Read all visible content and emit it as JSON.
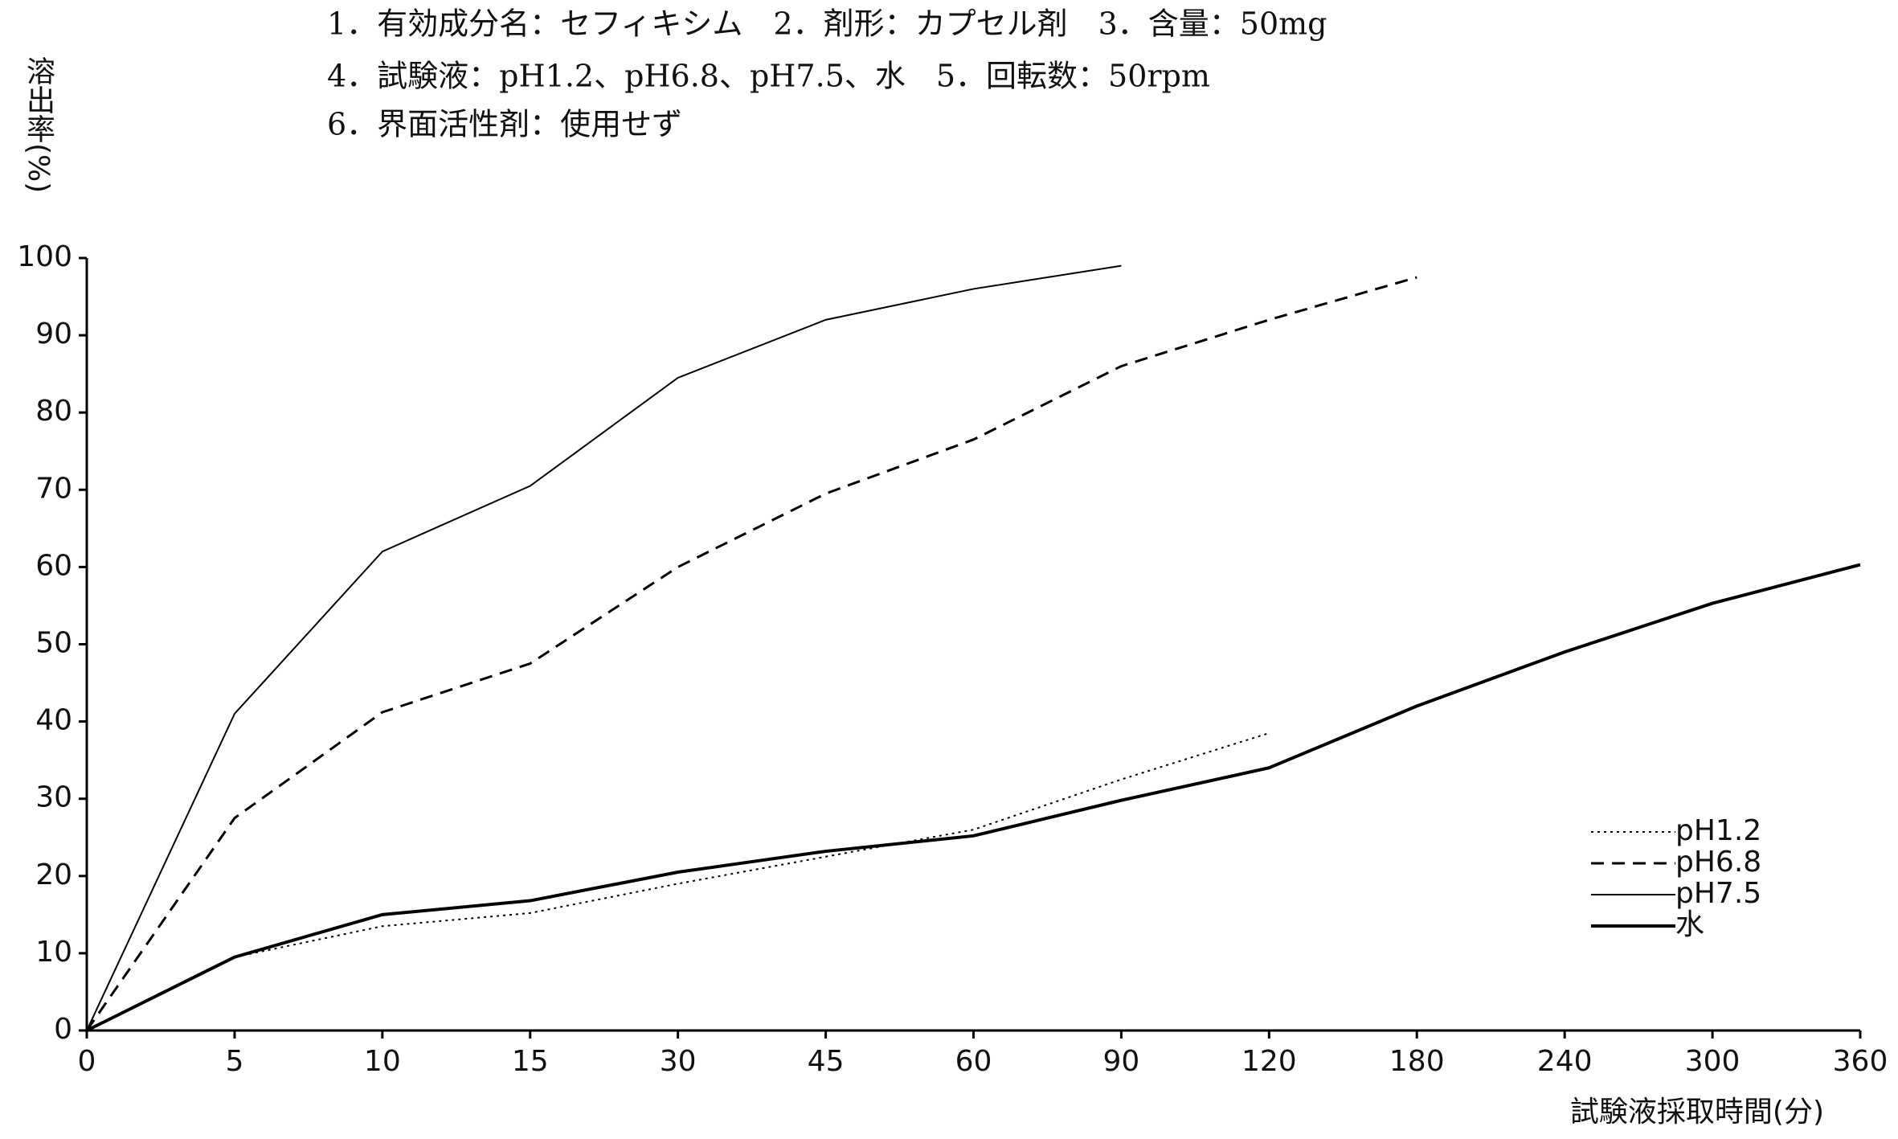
{
  "chart_data": {
    "type": "line",
    "header": [
      "1．有効成分名：セフィキシム　2．剤形：カプセル剤　3．含量：50mg",
      "4．試験液：pH1.2、pH6.8、pH7.5、水　5．回転数：50rpm",
      "6．界面活性剤：使用せず"
    ],
    "y_label": "溶出率(%)",
    "x_label": "試験液採取時間(分)",
    "categories": [
      "0",
      "5",
      "10",
      "15",
      "30",
      "45",
      "60",
      "90",
      "120",
      "180",
      "240",
      "300",
      "360"
    ],
    "series": [
      {
        "name": "pH1.2",
        "color": "#000000",
        "style": "dotted",
        "values": [
          0,
          9.5,
          13.5,
          15.2,
          19,
          22.5,
          26,
          32.5,
          38.5,
          null,
          null,
          null,
          null
        ]
      },
      {
        "name": "pH6.8",
        "color": "#000000",
        "style": "dashed",
        "values": [
          0,
          27.5,
          41.2,
          47.5,
          60,
          69.5,
          76.5,
          86,
          92,
          97.5,
          null,
          null,
          null
        ]
      },
      {
        "name": "pH7.5",
        "color": "#000000",
        "style": "solid",
        "values": [
          0,
          41,
          62,
          70.5,
          84.5,
          92,
          96,
          99,
          null,
          null,
          null,
          null,
          null
        ]
      },
      {
        "name": "水",
        "color": "#000000",
        "style": "bold",
        "values": [
          0,
          9.5,
          15,
          16.8,
          20.5,
          23.2,
          25.2,
          29.8,
          34,
          42,
          49,
          55.3,
          60.3
        ]
      }
    ],
    "ylim": [
      0,
      100
    ],
    "yticks": [
      0,
      10,
      20,
      30,
      40,
      50,
      60,
      70,
      80,
      90,
      100
    ],
    "legend": "right",
    "grid": false
  }
}
